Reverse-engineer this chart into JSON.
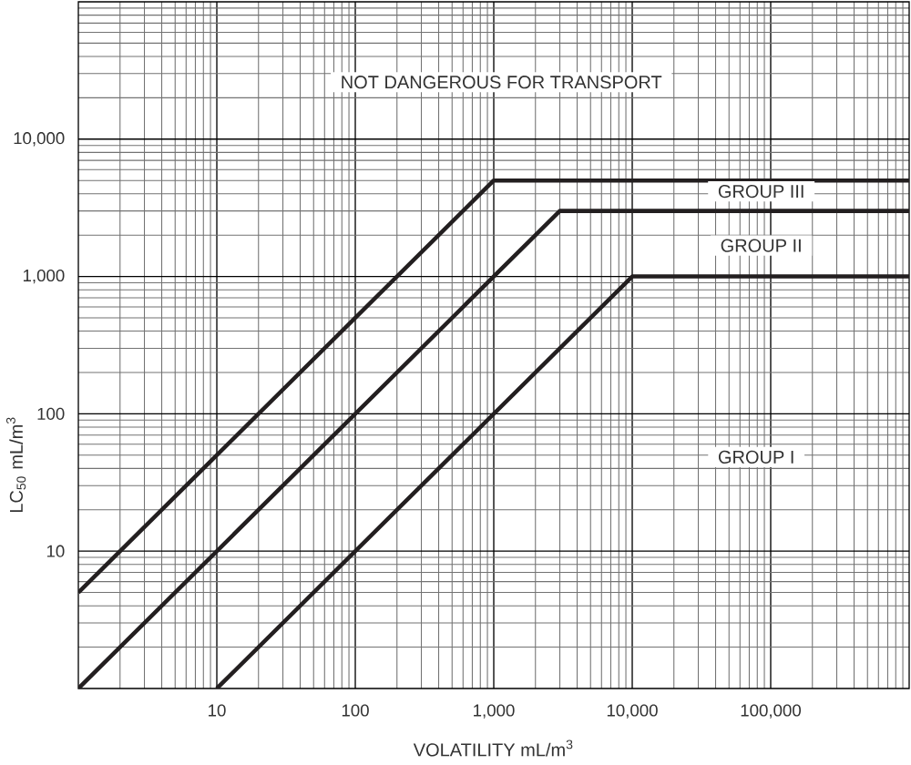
{
  "chart_data": {
    "type": "line",
    "xlabel": "VOLATILITY mL/m$^{3}$",
    "ylabel": "LC$_{50}$ mL/m$^{3}$",
    "log": "xy",
    "grid": true,
    "marker": "none",
    "xlim": [
      1,
      1000000
    ],
    "ylim": [
      1,
      100000
    ],
    "xticks": [
      10,
      100,
      {
        "value": 1000,
        "label": "1,000"
      },
      {
        "value": 10000,
        "label": "10,000"
      },
      {
        "value": 100000,
        "label": "100,000"
      }
    ],
    "yticks": [
      10,
      100,
      {
        "value": 1000,
        "label": "1,000"
      },
      {
        "value": 10000,
        "label": "10,000"
      }
    ],
    "series": [
      {
        "color": "#231f20",
        "x": [
          1,
          1000,
          1000000
        ],
        "values": [
          5,
          5000,
          5000
        ]
      },
      {
        "color": "#231f20",
        "x": [
          1,
          3000,
          1000000
        ],
        "values": [
          1,
          3000,
          3000
        ]
      },
      {
        "color": "#231f20",
        "x": [
          10,
          10000,
          1000000
        ],
        "values": [
          1,
          1000,
          1000
        ]
      }
    ],
    "annotations": [
      "NOT DANGEROUS FOR TRANSPORT",
      "GROUP III",
      "GROUP II",
      "GROUP I"
    ]
  }
}
